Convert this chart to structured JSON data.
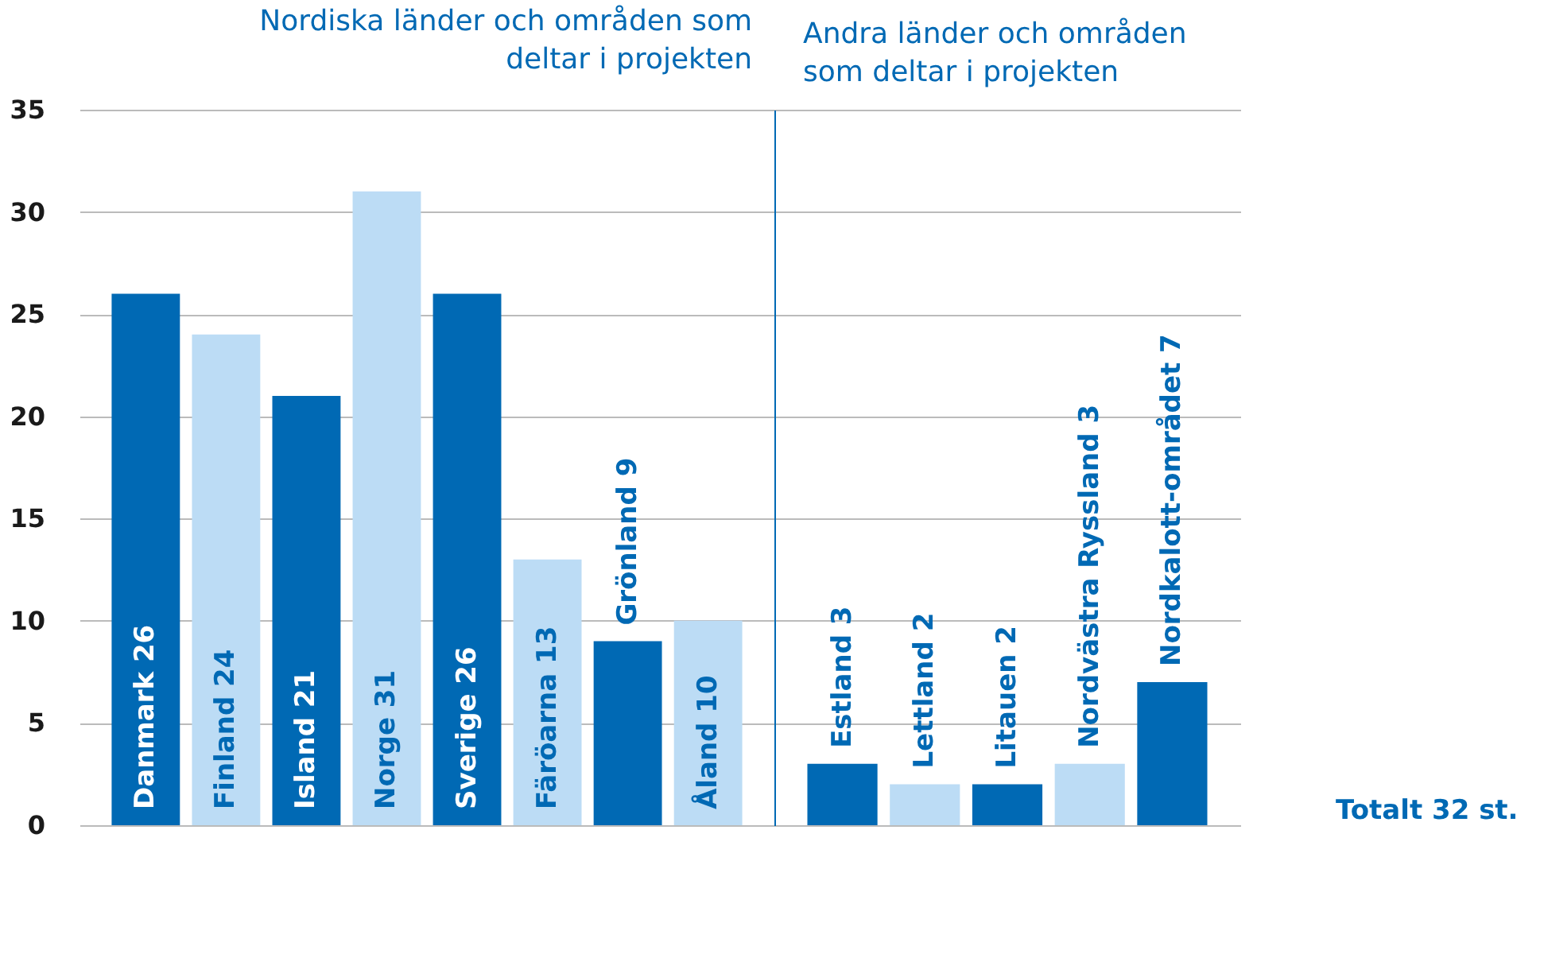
{
  "chart_data": [
    {
      "type": "bar",
      "title": "Nordiska länder och områden som deltar i projekten",
      "categories": [
        "Danmark 26",
        "Finland 24",
        "Island 21",
        "Norge 31",
        "Sverige 26",
        "Färöarna 13",
        "Grönland 9",
        "Åland 10"
      ],
      "values": [
        26,
        24,
        21,
        31,
        26,
        13,
        9,
        10
      ],
      "colors": [
        "#0069b4",
        "#bcdcf5",
        "#0069b4",
        "#bcdcf5",
        "#0069b4",
        "#bcdcf5",
        "#0069b4",
        "#bcdcf5"
      ],
      "ylim": [
        0,
        35
      ],
      "yticks": [
        0,
        5,
        10,
        15,
        20,
        25,
        30,
        35
      ],
      "grid": "y"
    },
    {
      "type": "bar",
      "title": "Andra länder och områden som deltar i projekten",
      "categories": [
        "Estland 3",
        "Lettland 2",
        "Litauen 2",
        "Nordvästra Ryssland 3",
        "Nordkalott-området 7"
      ],
      "values": [
        3,
        2,
        2,
        3,
        7
      ],
      "colors": [
        "#0069b4",
        "#bcdcf5",
        "#0069b4",
        "#bcdcf5",
        "#0069b4"
      ],
      "ylim": [
        0,
        35
      ],
      "yticks": [
        0,
        5,
        10,
        15,
        20,
        25,
        30,
        35
      ],
      "grid": "y",
      "tick_labels": false,
      "annotations": [
        "Totalt 32 st."
      ]
    }
  ]
}
